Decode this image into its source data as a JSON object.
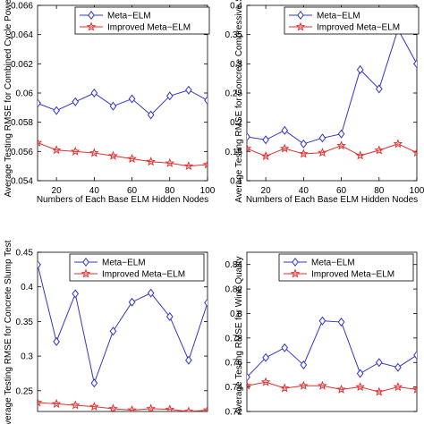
{
  "colors": {
    "meta_elm": "#3333cc",
    "improved_meta_elm": "#e03030",
    "axis": "#000000",
    "background": "#ffffff"
  },
  "chart_data": [
    {
      "type": "line",
      "ylabel": "Average Testing RMSE for Combined Cycle Power",
      "xlabel": "Numbers of Each Base ELM Hidden Nodes",
      "xlim": [
        10,
        100
      ],
      "ylim": [
        0.054,
        0.066
      ],
      "xticks": [
        "20",
        "40",
        "60",
        "80",
        "100"
      ],
      "yticks": [
        "0.054",
        "0.056",
        "0.058",
        "0.06",
        "0.062",
        "0.064",
        "0.066"
      ],
      "legend": "top-left",
      "x": [
        10,
        20,
        30,
        40,
        50,
        60,
        70,
        80,
        90,
        100
      ],
      "series": [
        {
          "name": "Meta−ELM",
          "marker": "diamond",
          "values": [
            0.0593,
            0.0588,
            0.0594,
            0.06,
            0.0591,
            0.0596,
            0.0585,
            0.0598,
            0.0602,
            0.0595
          ]
        },
        {
          "name": "Improved Meta−ELM",
          "marker": "star",
          "values": [
            0.0566,
            0.0561,
            0.056,
            0.0559,
            0.0557,
            0.0555,
            0.0553,
            0.0552,
            0.055,
            0.0551
          ]
        }
      ]
    },
    {
      "type": "line",
      "ylabel": "Average Testing RMSE for Concrete Compressive Str",
      "xlabel": "Numbers of Each Base ELM Hidden Nodes",
      "xlim": [
        10,
        100
      ],
      "ylim": [
        0.1,
        0.4
      ],
      "xticks": [
        "20",
        "40",
        "60",
        "80",
        "100"
      ],
      "yticks": [
        "0.1",
        "0.15",
        "0.2",
        "0.25",
        "0.3",
        "0.35",
        "0.4"
      ],
      "legend": "top-left",
      "x": [
        10,
        20,
        30,
        40,
        50,
        60,
        70,
        80,
        90,
        100
      ],
      "series": [
        {
          "name": "Meta−ELM",
          "marker": "diamond",
          "values": [
            0.175,
            0.17,
            0.186,
            0.163,
            0.173,
            0.18,
            0.29,
            0.257,
            0.359,
            0.3
          ]
        },
        {
          "name": "Improved Meta−ELM",
          "marker": "star",
          "values": [
            0.155,
            0.142,
            0.155,
            0.146,
            0.148,
            0.16,
            0.143,
            0.152,
            0.163,
            0.148
          ]
        }
      ]
    },
    {
      "type": "line",
      "ylabel": "Average Testing RMSE for Concrete Slump Test",
      "xlabel": "",
      "xlim": [
        10,
        100
      ],
      "ylim": [
        0.22,
        0.45
      ],
      "xticks": [],
      "yticks": [
        "0.25",
        "0.3",
        "0.35",
        "0.4",
        "0.45"
      ],
      "legend": "top-right",
      "x": [
        10,
        20,
        30,
        40,
        50,
        60,
        70,
        80,
        90,
        100
      ],
      "series": [
        {
          "name": "Meta−ELM",
          "marker": "diamond",
          "values": [
            0.432,
            0.321,
            0.39,
            0.261,
            0.336,
            0.378,
            0.391,
            0.357,
            0.294,
            0.377
          ]
        },
        {
          "name": "Improved Meta−ELM",
          "marker": "star",
          "values": [
            0.233,
            0.231,
            0.229,
            0.227,
            0.224,
            0.222,
            0.224,
            0.223,
            0.22,
            0.222
          ]
        }
      ]
    },
    {
      "type": "line",
      "ylabel": "Average Testing RMSE for Wine Quality",
      "xlabel": "",
      "xlim": [
        10,
        100
      ],
      "ylim": [
        0.72,
        0.85
      ],
      "xticks": [],
      "yticks": [
        "0.72",
        "0.74",
        "0.76",
        "0.78",
        "0.8",
        "0.82",
        "0.84"
      ],
      "legend": "top-right",
      "x": [
        10,
        20,
        30,
        40,
        50,
        60,
        70,
        80,
        90,
        100
      ],
      "series": [
        {
          "name": "Meta−ELM",
          "marker": "diamond",
          "values": [
            0.748,
            0.764,
            0.772,
            0.758,
            0.794,
            0.793,
            0.751,
            0.76,
            0.756,
            0.766
          ]
        },
        {
          "name": "Improved Meta−ELM",
          "marker": "star",
          "values": [
            0.741,
            0.744,
            0.739,
            0.741,
            0.741,
            0.738,
            0.74,
            0.736,
            0.74,
            0.738
          ]
        }
      ]
    }
  ]
}
